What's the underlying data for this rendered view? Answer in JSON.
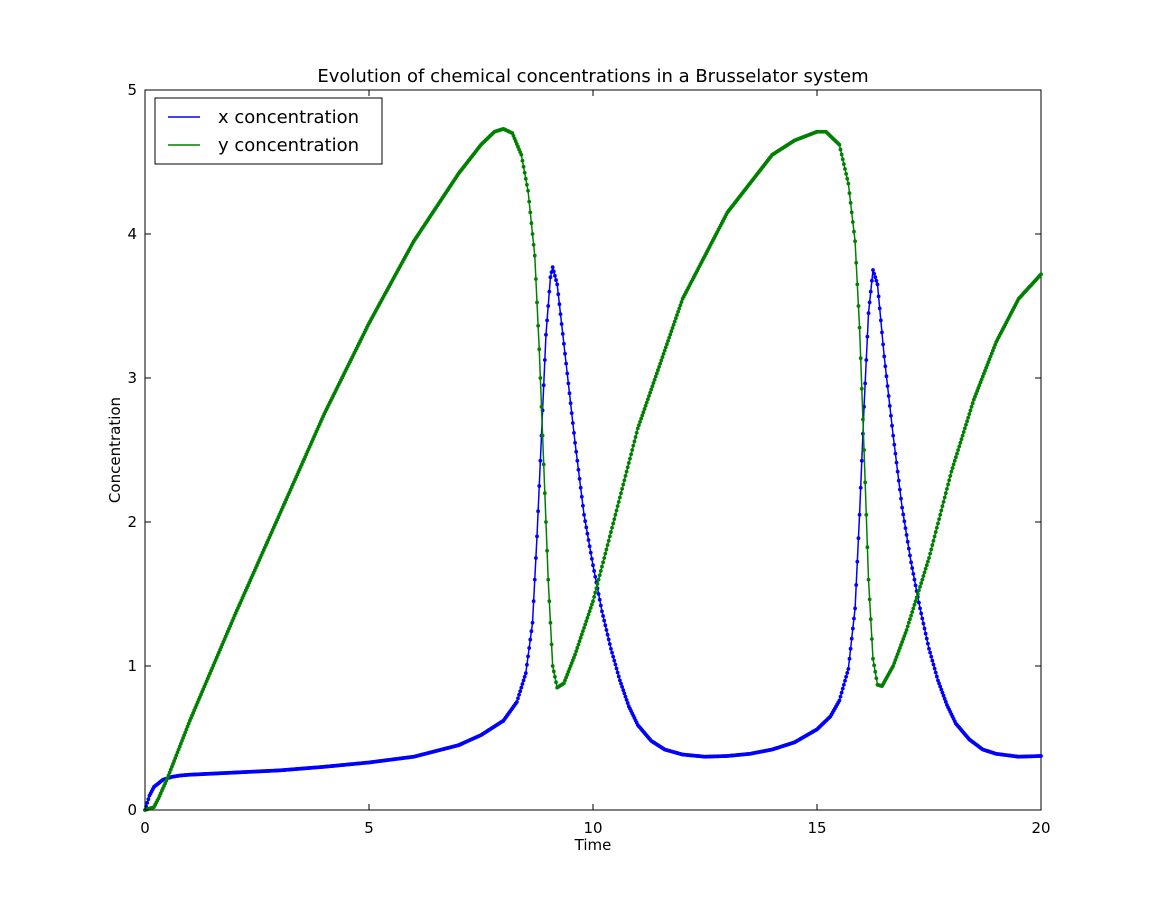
{
  "chart_data": {
    "type": "line",
    "title": "Evolution of chemical concentrations in a Brusselator system",
    "xlabel": "Time",
    "ylabel": "Concentration",
    "xlim": [
      0,
      20
    ],
    "ylim": [
      0,
      5
    ],
    "xticks": [
      0,
      5,
      10,
      15,
      20
    ],
    "yticks": [
      0,
      1,
      2,
      3,
      4,
      5
    ],
    "xtick_labels": [
      "0",
      "5",
      "10",
      "15",
      "20"
    ],
    "ytick_labels": [
      "0",
      "1",
      "2",
      "3",
      "4",
      "5"
    ],
    "grid": false,
    "legend_position": "upper-left",
    "marker": "small dots",
    "series": [
      {
        "name": "x concentration",
        "color": "#0000ff",
        "points": [
          [
            0,
            0
          ],
          [
            0.1,
            0.1
          ],
          [
            0.2,
            0.16
          ],
          [
            0.4,
            0.21
          ],
          [
            0.6,
            0.23
          ],
          [
            0.8,
            0.24
          ],
          [
            1,
            0.245
          ],
          [
            2,
            0.26
          ],
          [
            3,
            0.275
          ],
          [
            4,
            0.3
          ],
          [
            5,
            0.33
          ],
          [
            6,
            0.37
          ],
          [
            7,
            0.45
          ],
          [
            7.5,
            0.52
          ],
          [
            8,
            0.62
          ],
          [
            8.3,
            0.75
          ],
          [
            8.5,
            0.95
          ],
          [
            8.65,
            1.3
          ],
          [
            8.75,
            1.9
          ],
          [
            8.85,
            2.6
          ],
          [
            8.95,
            3.3
          ],
          [
            9.05,
            3.7
          ],
          [
            9.1,
            3.77
          ],
          [
            9.2,
            3.65
          ],
          [
            9.4,
            3.1
          ],
          [
            9.6,
            2.55
          ],
          [
            9.8,
            2.05
          ],
          [
            10,
            1.7
          ],
          [
            10.2,
            1.38
          ],
          [
            10.4,
            1.12
          ],
          [
            10.6,
            0.9
          ],
          [
            10.8,
            0.72
          ],
          [
            11,
            0.59
          ],
          [
            11.3,
            0.48
          ],
          [
            11.6,
            0.42
          ],
          [
            12,
            0.385
          ],
          [
            12.5,
            0.37
          ],
          [
            13,
            0.375
          ],
          [
            13.5,
            0.39
          ],
          [
            14,
            0.42
          ],
          [
            14.5,
            0.47
          ],
          [
            15,
            0.56
          ],
          [
            15.3,
            0.65
          ],
          [
            15.5,
            0.76
          ],
          [
            15.7,
            0.98
          ],
          [
            15.85,
            1.4
          ],
          [
            15.95,
            2.05
          ],
          [
            16.05,
            2.8
          ],
          [
            16.15,
            3.45
          ],
          [
            16.25,
            3.75
          ],
          [
            16.35,
            3.65
          ],
          [
            16.5,
            3.15
          ],
          [
            16.7,
            2.6
          ],
          [
            16.9,
            2.1
          ],
          [
            17.1,
            1.72
          ],
          [
            17.3,
            1.4
          ],
          [
            17.5,
            1.12
          ],
          [
            17.7,
            0.9
          ],
          [
            17.9,
            0.73
          ],
          [
            18.1,
            0.6
          ],
          [
            18.4,
            0.49
          ],
          [
            18.7,
            0.42
          ],
          [
            19,
            0.39
          ],
          [
            19.5,
            0.37
          ],
          [
            20,
            0.375
          ]
        ]
      },
      {
        "name": "y concentration",
        "color": "#008000",
        "points": [
          [
            0,
            0
          ],
          [
            0.2,
            0.02
          ],
          [
            0.3,
            0.08
          ],
          [
            0.5,
            0.22
          ],
          [
            1,
            0.62
          ],
          [
            2,
            1.35
          ],
          [
            3,
            2.05
          ],
          [
            4,
            2.75
          ],
          [
            5,
            3.38
          ],
          [
            6,
            3.95
          ],
          [
            7,
            4.42
          ],
          [
            7.5,
            4.62
          ],
          [
            7.8,
            4.71
          ],
          [
            8,
            4.73
          ],
          [
            8.2,
            4.7
          ],
          [
            8.4,
            4.55
          ],
          [
            8.55,
            4.3
          ],
          [
            8.7,
            3.85
          ],
          [
            8.8,
            3.2
          ],
          [
            8.9,
            2.4
          ],
          [
            9,
            1.6
          ],
          [
            9.1,
            1.0
          ],
          [
            9.2,
            0.85
          ],
          [
            9.35,
            0.88
          ],
          [
            9.6,
            1.08
          ],
          [
            10,
            1.45
          ],
          [
            10.5,
            2.05
          ],
          [
            11,
            2.65
          ],
          [
            12,
            3.55
          ],
          [
            13,
            4.15
          ],
          [
            14,
            4.55
          ],
          [
            14.5,
            4.65
          ],
          [
            15,
            4.71
          ],
          [
            15.2,
            4.71
          ],
          [
            15.5,
            4.62
          ],
          [
            15.7,
            4.35
          ],
          [
            15.85,
            3.95
          ],
          [
            15.95,
            3.35
          ],
          [
            16.05,
            2.5
          ],
          [
            16.15,
            1.6
          ],
          [
            16.25,
            1.05
          ],
          [
            16.35,
            0.87
          ],
          [
            16.45,
            0.86
          ],
          [
            16.7,
            1.0
          ],
          [
            17,
            1.25
          ],
          [
            17.5,
            1.75
          ],
          [
            18,
            2.35
          ],
          [
            18.5,
            2.85
          ],
          [
            19,
            3.25
          ],
          [
            19.5,
            3.55
          ],
          [
            20,
            3.72
          ]
        ]
      }
    ]
  }
}
